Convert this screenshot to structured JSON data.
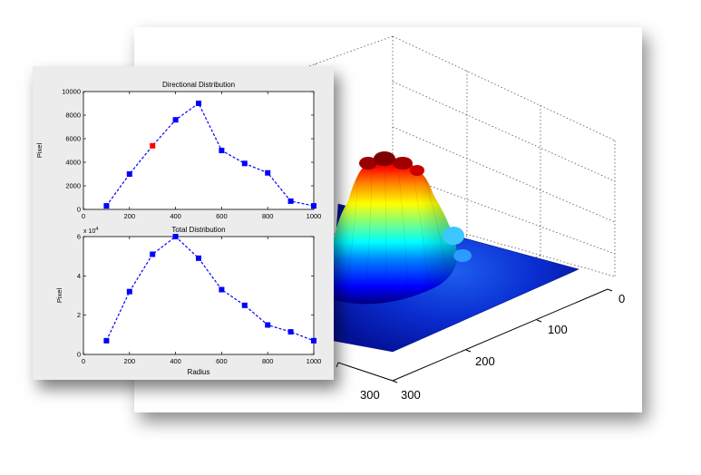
{
  "chart_data": [
    {
      "type": "line",
      "title": "Directional Distribution",
      "xlabel": "",
      "ylabel": "Pixel",
      "xlim": [
        0,
        1000
      ],
      "ylim": [
        0,
        10000
      ],
      "xticks": [
        "0",
        "200",
        "400",
        "600",
        "800",
        "1000"
      ],
      "yticks": [
        "0",
        "2000",
        "4000",
        "6000",
        "8000",
        "10000"
      ],
      "x": [
        100,
        200,
        300,
        400,
        500,
        600,
        700,
        800,
        900,
        1000
      ],
      "y": [
        300,
        3000,
        5400,
        7600,
        9000,
        5000,
        3900,
        3100,
        700,
        300
      ],
      "highlight_index": 2,
      "color": "#0000ff",
      "highlight_color": "#ff0000"
    },
    {
      "type": "line",
      "title": "Total Distribution",
      "xlabel": "Radius",
      "ylabel": "Pixel",
      "exponent_label": "x 10",
      "exponent_power": "4",
      "xlim": [
        0,
        1000
      ],
      "ylim": [
        0,
        6
      ],
      "xticks": [
        "0",
        "200",
        "400",
        "600",
        "800",
        "1000"
      ],
      "yticks": [
        "0",
        "2",
        "4",
        "6"
      ],
      "x": [
        100,
        200,
        300,
        400,
        500,
        600,
        700,
        800,
        900,
        1000
      ],
      "y": [
        0.7,
        3.2,
        5.1,
        6.0,
        4.9,
        3.3,
        2.5,
        1.5,
        1.15,
        0.7
      ],
      "color": "#0000ff"
    },
    {
      "type": "surface",
      "title": "",
      "axis_ticks_a": [
        "0",
        "100",
        "200",
        "300"
      ],
      "axis_ticks_b": [
        "300"
      ],
      "colormap": "jet",
      "grid": true
    }
  ]
}
